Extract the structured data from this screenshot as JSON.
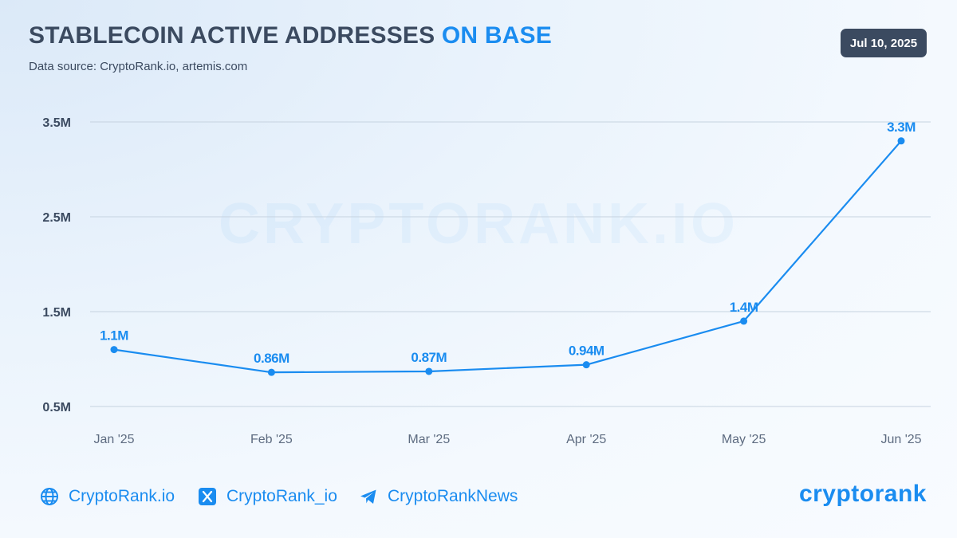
{
  "header": {
    "title_main": "STABLECOIN ACTIVE ADDRESSES",
    "title_accent": "ON BASE",
    "subtitle": "Data source: CryptoRank.io, artemis.com",
    "date": "Jul 10, 2025"
  },
  "watermark": "CRYPTORANK.IO",
  "colors": {
    "accent": "#1a8cf0",
    "title": "#3b4a60",
    "grid": "#c6d3e0"
  },
  "chart_data": {
    "type": "line",
    "categories": [
      "Jan '25",
      "Feb '25",
      "Mar '25",
      "Apr '25",
      "May '25",
      "Jun '25"
    ],
    "values": [
      1.1,
      0.86,
      0.87,
      0.94,
      1.4,
      3.3
    ],
    "data_labels": [
      "1.1M",
      "0.86M",
      "0.87M",
      "0.94M",
      "1.4M",
      "3.3M"
    ],
    "y_ticks": [
      0.5,
      1.5,
      2.5,
      3.5
    ],
    "y_tick_labels": [
      "0.5M",
      "1.5M",
      "2.5M",
      "3.5M"
    ],
    "ylim": [
      0.5,
      3.5
    ],
    "unit": "M",
    "grid": true,
    "legend": "none"
  },
  "footer": {
    "website": {
      "label": "CryptoRank.io",
      "icon": "globe-icon"
    },
    "x": {
      "label": "CryptoRank_io",
      "icon": "x-logo-icon"
    },
    "telegram": {
      "label": "CryptoRankNews",
      "icon": "telegram-icon"
    },
    "brand": "cryptorank"
  }
}
